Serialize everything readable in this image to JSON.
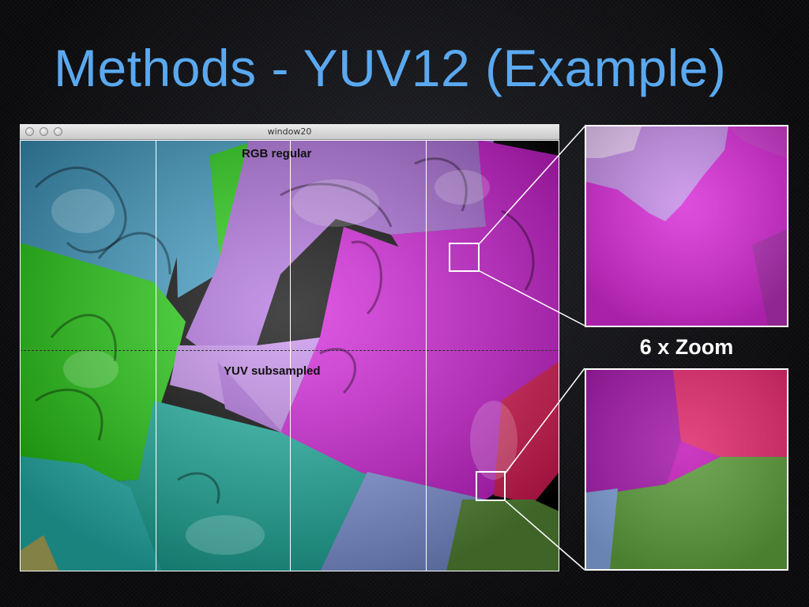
{
  "slide": {
    "title": "Methods - YUV12 (Example)",
    "zoom_label": "6 x Zoom"
  },
  "window": {
    "title": "window20",
    "buttons": [
      "close",
      "minimize",
      "zoom"
    ],
    "labels": {
      "top": "RGB regular",
      "bottom": "YUV subsampled"
    }
  },
  "colors": {
    "title": "#5aa9f0",
    "blue": "#3d9fc9",
    "green": "#22d40f",
    "purple": "#b06fe0",
    "magenta": "#d51adc",
    "teal": "#1cb7a6",
    "periwinkle": "#8ba3ef",
    "red": "#ee1a5a",
    "olive": "#5f9a3c"
  },
  "icons": [
    "window-close-icon",
    "window-minimize-icon",
    "window-zoom-icon"
  ]
}
